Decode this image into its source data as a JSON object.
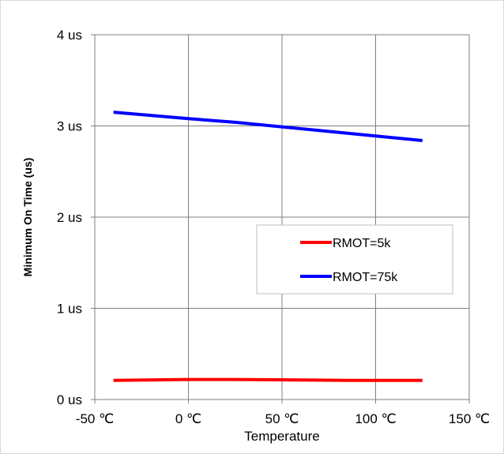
{
  "chart_data": {
    "type": "line",
    "xlabel": "Temperature",
    "ylabel": "Minimum On Time (us)",
    "xlim": [
      -50,
      150
    ],
    "ylim": [
      0,
      4
    ],
    "x_ticks": [
      {
        "value": -50,
        "label": "-50 ℃"
      },
      {
        "value": 0,
        "label": "0 ℃"
      },
      {
        "value": 50,
        "label": "50 ℃"
      },
      {
        "value": 100,
        "label": "100 ℃"
      },
      {
        "value": 150,
        "label": "150 ℃"
      }
    ],
    "y_ticks": [
      {
        "value": 0,
        "label": "0 us"
      },
      {
        "value": 1,
        "label": "1 us"
      },
      {
        "value": 2,
        "label": "2 us"
      },
      {
        "value": 3,
        "label": "3 us"
      },
      {
        "value": 4,
        "label": "4 us"
      }
    ],
    "grid": true,
    "legend_position": "center-right",
    "series": [
      {
        "name": "RMOT=5k",
        "color": "#ff0000",
        "x": [
          -40,
          0,
          25,
          85,
          125
        ],
        "y": [
          0.21,
          0.22,
          0.22,
          0.21,
          0.21
        ]
      },
      {
        "name": "RMOT=75k",
        "color": "#0000ff",
        "x": [
          -40,
          0,
          25,
          85,
          125
        ],
        "y": [
          3.15,
          3.08,
          3.04,
          2.92,
          2.84
        ]
      }
    ]
  }
}
